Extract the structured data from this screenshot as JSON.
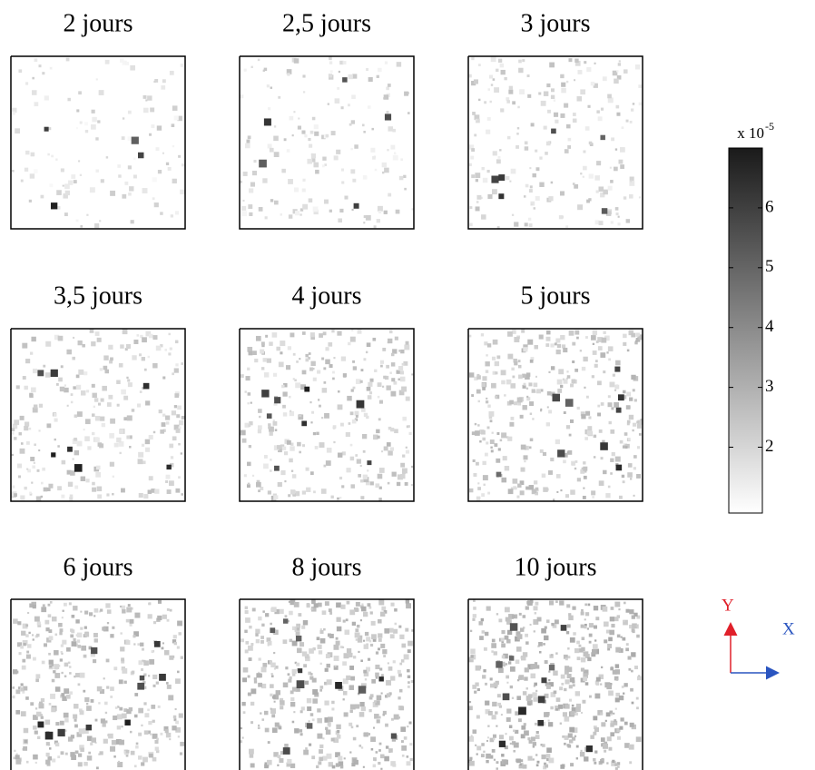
{
  "panels": [
    {
      "title": "2 jours"
    },
    {
      "title": "2,5 jours"
    },
    {
      "title": "3 jours"
    },
    {
      "title": "3,5 jours"
    },
    {
      "title": "4 jours"
    },
    {
      "title": "5 jours"
    },
    {
      "title": "6 jours"
    },
    {
      "title": "8 jours"
    },
    {
      "title": "10 jours"
    }
  ],
  "colorbar": {
    "multiplier": "x 10",
    "exponent": "-5",
    "lim": [
      0.9,
      7
    ],
    "ticks": [
      2,
      3,
      4,
      5,
      6
    ]
  },
  "axes": {
    "y_label": "Y",
    "x_label": "X"
  }
}
